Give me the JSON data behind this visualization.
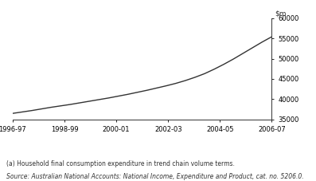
{
  "x_labels": [
    "1996-97",
    "1998-99",
    "2000-01",
    "2002-03",
    "2004-05",
    "2006-07"
  ],
  "x_positions": [
    0,
    2,
    4,
    6,
    8,
    10
  ],
  "xlim": [
    0,
    10
  ],
  "ylim": [
    35000,
    60000
  ],
  "yticks": [
    35000,
    40000,
    45000,
    50000,
    55000,
    60000
  ],
  "line_color": "#333333",
  "line_width": 1.0,
  "y_data": [
    36500,
    36850,
    37200,
    37600,
    38000,
    38350,
    38700,
    39100,
    39500,
    39900,
    40300,
    40750,
    41200,
    41700,
    42200,
    42750,
    43300,
    43900,
    44600,
    45400,
    46300,
    47400,
    48600,
    49900,
    51300,
    52700,
    54100,
    55400
  ],
  "footnote1": "(a) Household final consumption expenditure in trend chain volume terms.",
  "footnote2": "Source: Australian National Accounts: National Income, Expenditure and Product, cat. no. 5206.0.",
  "background_color": "#ffffff"
}
